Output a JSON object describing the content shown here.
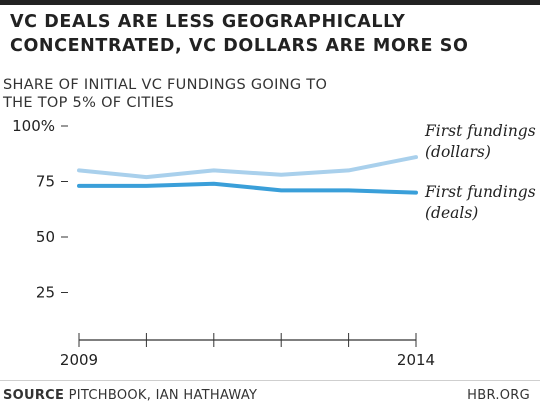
{
  "header": {
    "title_line1": "VC DEALS ARE LESS GEOGRAPHICALLY",
    "title_line2": "CONCENTRATED, VC DOLLARS ARE MORE SO",
    "subtitle_line1": "SHARE OF INITIAL VC FUNDINGS GOING TO",
    "subtitle_line2": "THE TOP 5% OF CITIES"
  },
  "footer": {
    "source_label": "SOURCE",
    "source_text": "PITCHBOOK, IAN HATHAWAY",
    "brand": "HBR.ORG"
  },
  "colors": {
    "dollars": "#a9d0ec",
    "deals": "#3a9fd9",
    "axis": "#333333",
    "text": "#222222"
  },
  "chart_data": {
    "type": "line",
    "x": [
      2009,
      2010,
      2011,
      2012,
      2013,
      2014
    ],
    "x_tick_labels": [
      "2009",
      "",
      "",
      "",
      "",
      "2014"
    ],
    "y_ticks": [
      {
        "value": 25,
        "label": "25"
      },
      {
        "value": 50,
        "label": "50"
      },
      {
        "value": 75,
        "label": "75"
      },
      {
        "value": 100,
        "label": "100%"
      }
    ],
    "ylim": [
      0,
      100
    ],
    "grid": false,
    "series": [
      {
        "name": "First fundings (dollars)",
        "label_lines": [
          "First fundings",
          "(dollars)"
        ],
        "values": [
          80,
          77,
          80,
          78,
          80,
          86
        ],
        "color_key": "dollars"
      },
      {
        "name": "First fundings (deals)",
        "label_lines": [
          "First fundings",
          "(deals)"
        ],
        "values": [
          73,
          73,
          74,
          71,
          71,
          70
        ],
        "color_key": "deals"
      }
    ]
  }
}
